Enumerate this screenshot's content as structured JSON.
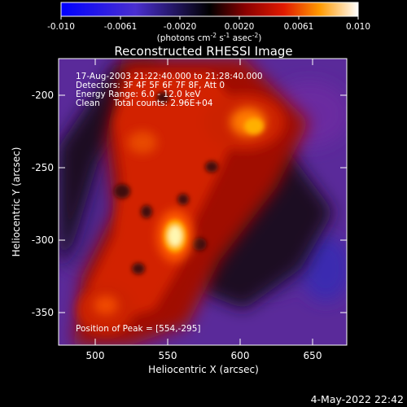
{
  "colorbar": {
    "ticks": [
      "-0.010",
      "-0.0061",
      "-0.0020",
      "0.0020",
      "0.0061",
      "0.010"
    ],
    "units_main": "(photons cm",
    "units_sup1": "-2",
    "units_mid": " s",
    "units_sup2": "-1",
    "units_end": " asec",
    "units_sup3": "-2",
    "units_close": ")"
  },
  "title": "Reconstructed RHESSI Image",
  "annotations": {
    "line1": "17-Aug-2003 21:22:40.000 to 21:28:40.000",
    "line2": "Detectors: 3F 4F 5F 6F 7F 8F, Att 0",
    "line3": "Energy Range: 6.0 - 12.0 keV",
    "line4": "Clean     Total counts: 2.96E+04",
    "peak": "Position of Peak = [554,-295]"
  },
  "axes": {
    "xlabel": "Heliocentric X (arcsec)",
    "ylabel": "Heliocentric Y (arcsec)",
    "xticks": [
      "500",
      "550",
      "600",
      "650"
    ],
    "yticks": [
      "-200",
      "-250",
      "-300",
      "-350"
    ]
  },
  "timestamp": "4-May-2022 22:42",
  "colors": {
    "background": "#000000",
    "foreground": "#ffffff",
    "negative_low": "#0000ff",
    "zero": "#000000",
    "positive_high": "#ffffff"
  }
}
